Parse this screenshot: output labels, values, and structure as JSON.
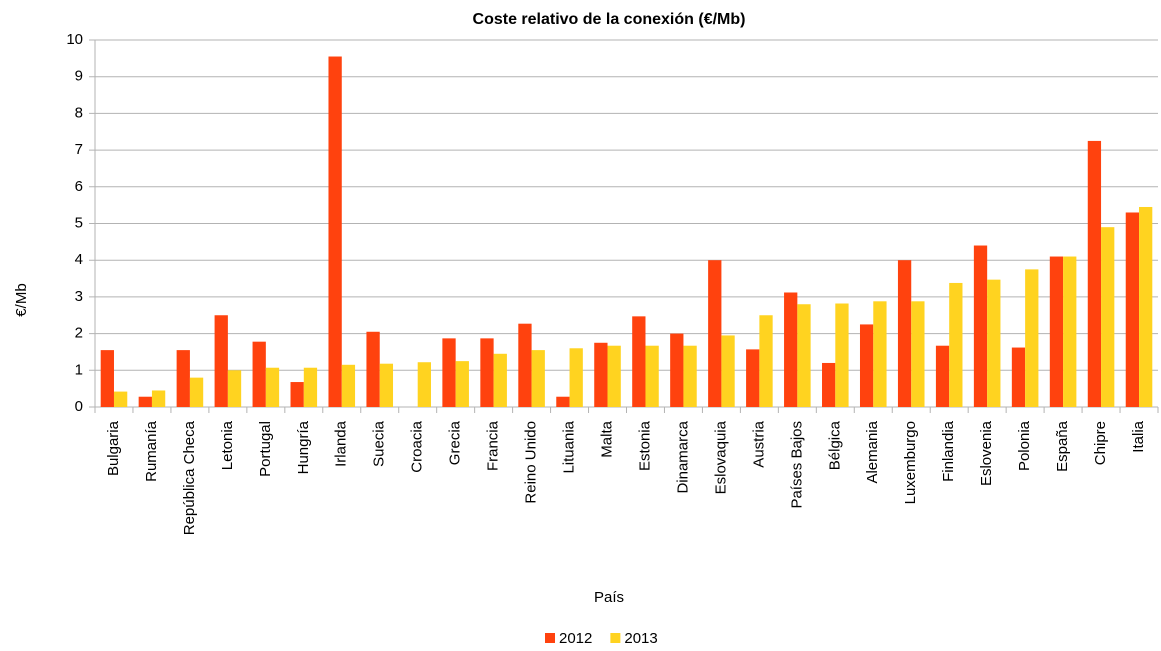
{
  "chart_data": {
    "type": "bar",
    "title": "Coste relativo de la conexión (€/Mb)",
    "x_label": "País",
    "y_label": "€/Mb",
    "categories": [
      "Bulgaria",
      "Rumanía",
      "República Checa",
      "Letonia",
      "Portugal",
      "Hungría",
      "Irlanda",
      "Suecia",
      "Croacia",
      "Grecia",
      "Francia",
      "Reino Unido",
      "Lituania",
      "Malta",
      "Estonia",
      "Dinamarca",
      "Eslovaquia",
      "Austria",
      "Países Bajos",
      "Bélgica",
      "Alemania",
      "Luxemburgo",
      "Finlandia",
      "Eslovenia",
      "Polonia",
      "España",
      "Chipre",
      "Italia"
    ],
    "series": [
      {
        "name": "2012",
        "color": "#ff420e",
        "values": [
          1.55,
          0.28,
          1.55,
          2.5,
          1.78,
          0.68,
          9.55,
          2.05,
          null,
          1.87,
          1.87,
          2.27,
          0.28,
          1.75,
          2.47,
          2.0,
          4.0,
          1.57,
          3.12,
          1.2,
          2.25,
          4.0,
          1.67,
          4.4,
          1.62,
          4.1,
          7.25,
          5.3
        ]
      },
      {
        "name": "2013",
        "color": "#ffd320",
        "values": [
          0.42,
          0.45,
          0.8,
          1.0,
          1.07,
          1.07,
          1.15,
          1.18,
          1.22,
          1.25,
          1.45,
          1.55,
          1.6,
          1.67,
          1.67,
          1.67,
          1.95,
          2.5,
          2.8,
          2.82,
          2.88,
          2.88,
          3.38,
          3.47,
          3.75,
          4.1,
          4.9,
          5.45
        ]
      }
    ],
    "ylim": [
      0,
      10
    ],
    "yticks": [
      0,
      1,
      2,
      3,
      4,
      5,
      6,
      7,
      8,
      9,
      10
    ],
    "grid": true,
    "legend": "bottom"
  }
}
